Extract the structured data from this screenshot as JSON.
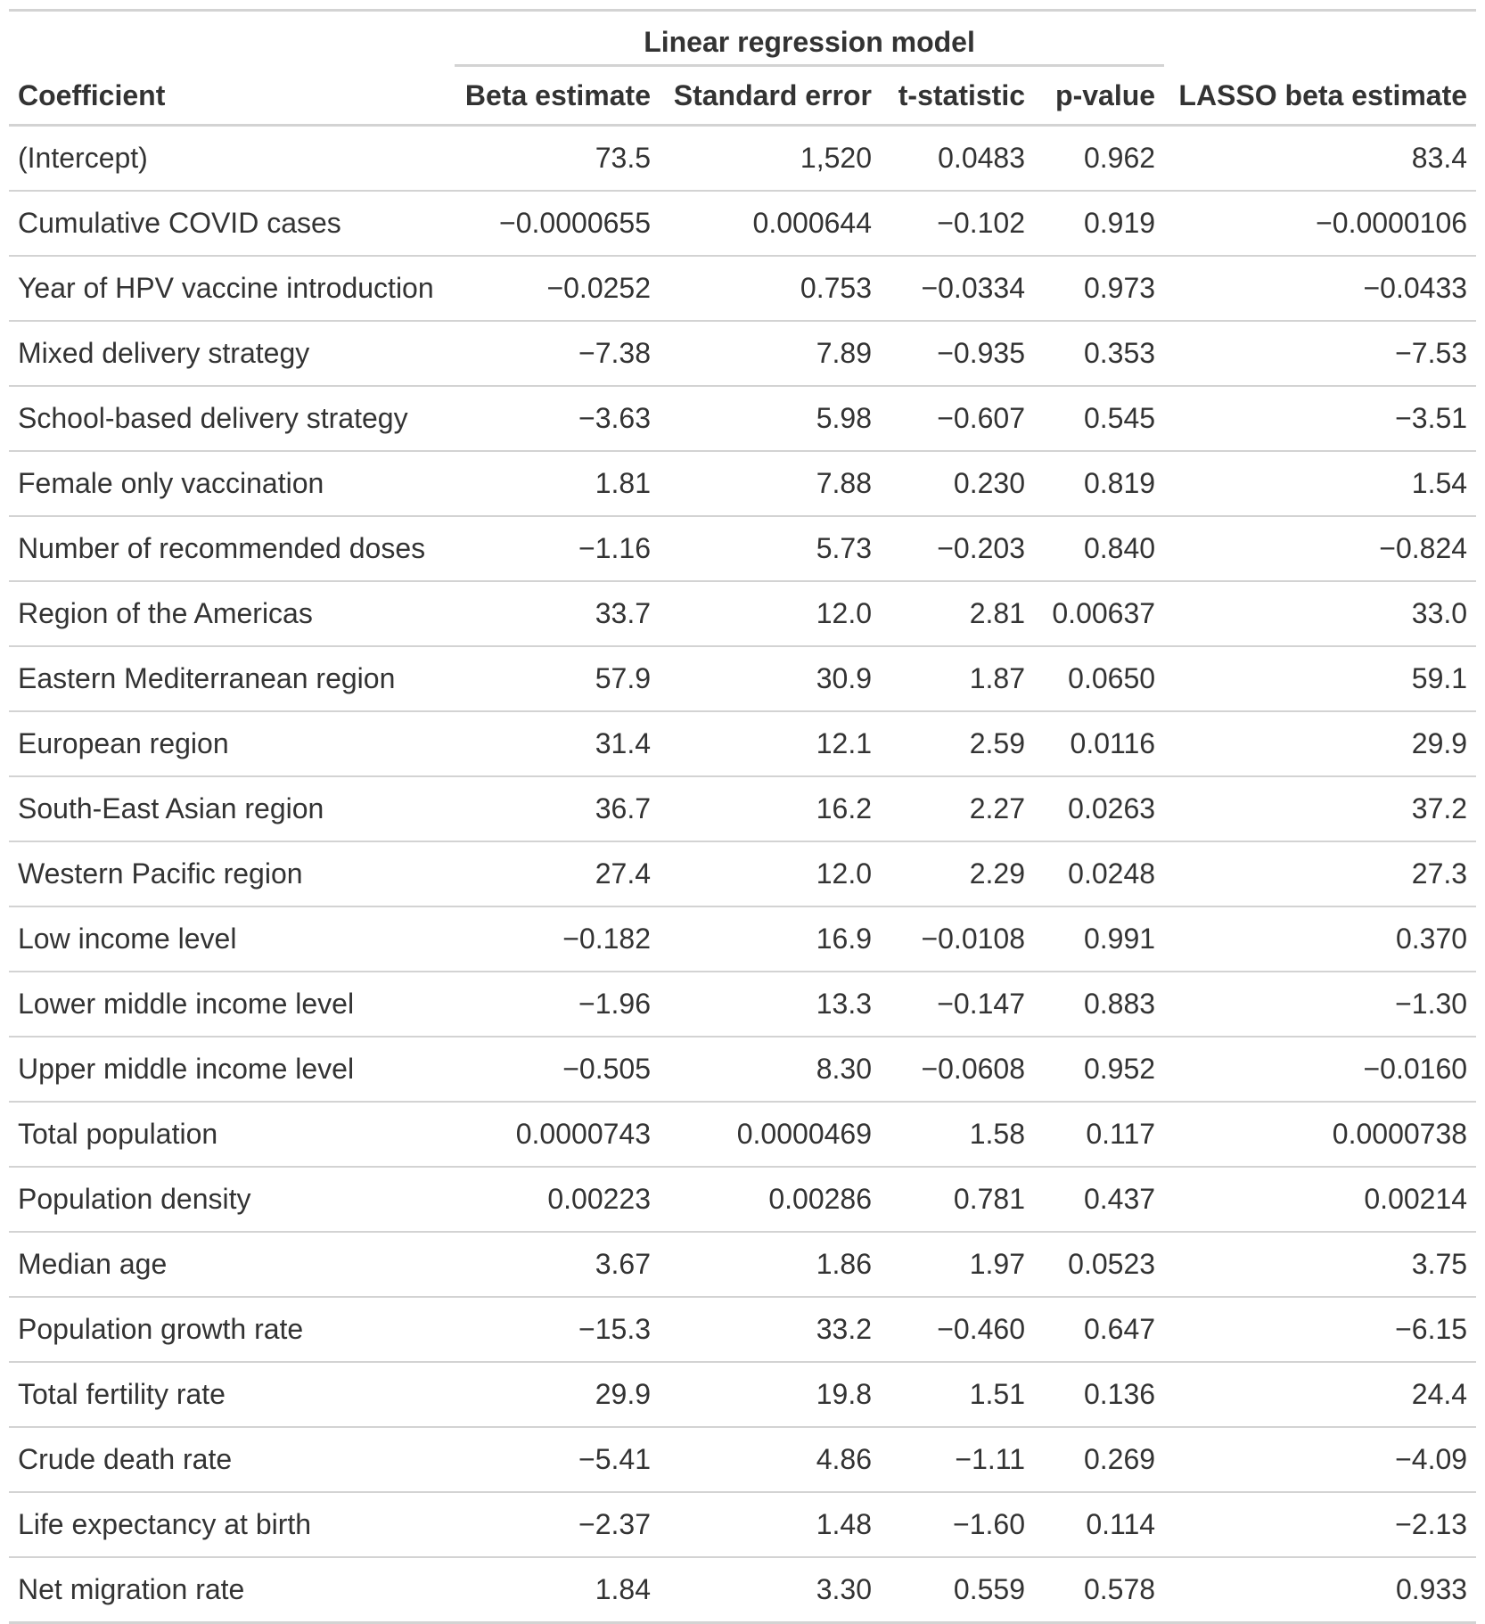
{
  "table": {
    "spanner": "Linear regression model",
    "columns": [
      "Coefficient",
      "Beta estimate",
      "Standard error",
      "t-statistic",
      "p-value",
      "LASSO beta estimate"
    ],
    "rows": [
      [
        "(Intercept)",
        "73.5",
        "1,520",
        "0.0483",
        "0.962",
        "83.4"
      ],
      [
        "Cumulative COVID cases",
        "−0.0000655",
        "0.000644",
        "−0.102",
        "0.919",
        "−0.0000106"
      ],
      [
        "Year of HPV vaccine introduction",
        "−0.0252",
        "0.753",
        "−0.0334",
        "0.973",
        "−0.0433"
      ],
      [
        "Mixed delivery strategy",
        "−7.38",
        "7.89",
        "−0.935",
        "0.353",
        "−7.53"
      ],
      [
        "School-based delivery strategy",
        "−3.63",
        "5.98",
        "−0.607",
        "0.545",
        "−3.51"
      ],
      [
        "Female only vaccination",
        "1.81",
        "7.88",
        "0.230",
        "0.819",
        "1.54"
      ],
      [
        "Number of recommended doses",
        "−1.16",
        "5.73",
        "−0.203",
        "0.840",
        "−0.824"
      ],
      [
        "Region of the Americas",
        "33.7",
        "12.0",
        "2.81",
        "0.00637",
        "33.0"
      ],
      [
        "Eastern Mediterranean region",
        "57.9",
        "30.9",
        "1.87",
        "0.0650",
        "59.1"
      ],
      [
        "European region",
        "31.4",
        "12.1",
        "2.59",
        "0.0116",
        "29.9"
      ],
      [
        "South-East Asian region",
        "36.7",
        "16.2",
        "2.27",
        "0.0263",
        "37.2"
      ],
      [
        "Western Pacific region",
        "27.4",
        "12.0",
        "2.29",
        "0.0248",
        "27.3"
      ],
      [
        "Low income level",
        "−0.182",
        "16.9",
        "−0.0108",
        "0.991",
        "0.370"
      ],
      [
        "Lower middle income level",
        "−1.96",
        "13.3",
        "−0.147",
        "0.883",
        "−1.30"
      ],
      [
        "Upper middle income level",
        "−0.505",
        "8.30",
        "−0.0608",
        "0.952",
        "−0.0160"
      ],
      [
        "Total population",
        "0.0000743",
        "0.0000469",
        "1.58",
        "0.117",
        "0.0000738"
      ],
      [
        "Population density",
        "0.00223",
        "0.00286",
        "0.781",
        "0.437",
        "0.00214"
      ],
      [
        "Median age",
        "3.67",
        "1.86",
        "1.97",
        "0.0523",
        "3.75"
      ],
      [
        "Population growth rate",
        "−15.3",
        "33.2",
        "−0.460",
        "0.647",
        "−6.15"
      ],
      [
        "Total fertility rate",
        "29.9",
        "19.8",
        "1.51",
        "0.136",
        "24.4"
      ],
      [
        "Crude death rate",
        "−5.41",
        "4.86",
        "−1.11",
        "0.269",
        "−4.09"
      ],
      [
        "Life expectancy at birth",
        "−2.37",
        "1.48",
        "−1.60",
        "0.114",
        "−2.13"
      ],
      [
        "Net migration rate",
        "1.84",
        "3.30",
        "0.559",
        "0.578",
        "0.933"
      ]
    ]
  }
}
